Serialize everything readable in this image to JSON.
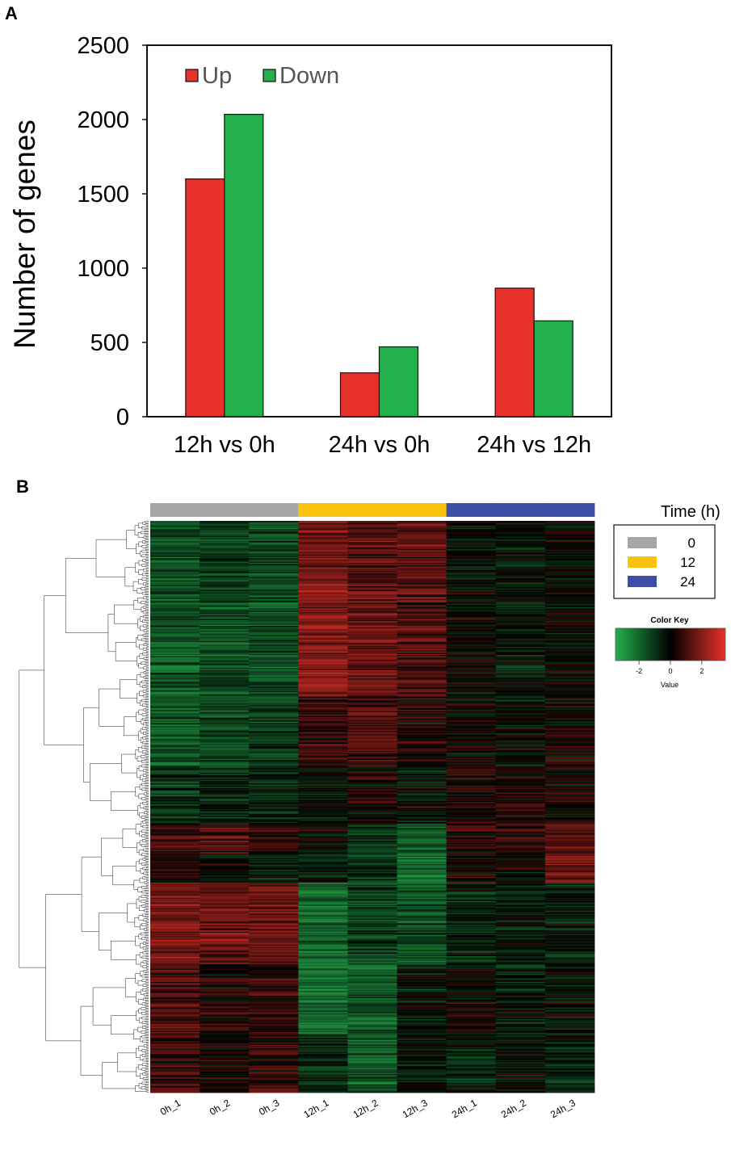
{
  "panel_labels": {
    "a": "A",
    "b": "B"
  },
  "chart_data": [
    {
      "type": "bar",
      "categories": [
        "12h vs 0h",
        "24h vs 0h",
        "24h vs 12h"
      ],
      "series": [
        {
          "name": "Up",
          "color": "#e8312a",
          "values": [
            1600,
            295,
            865
          ]
        },
        {
          "name": "Down",
          "color": "#23b04d",
          "values": [
            2035,
            470,
            645
          ]
        }
      ],
      "ylabel": "Number of genes",
      "xlabel": "",
      "ylim": [
        0,
        2500
      ],
      "yticks": [
        0,
        500,
        1000,
        1500,
        2000,
        2500
      ],
      "grid": false,
      "legend_position": "top-left"
    },
    {
      "type": "heatmap",
      "columns": [
        "0h_1",
        "0h_2",
        "0h_3",
        "12h_1",
        "12h_2",
        "12h_3",
        "24h_1",
        "24h_2",
        "24h_3"
      ],
      "column_groups": [
        {
          "label": "0",
          "color": "#a6a6a6"
        },
        {
          "label": "12",
          "color": "#fbc20e"
        },
        {
          "label": "24",
          "color": "#3f4fa8"
        }
      ],
      "column_group_of": [
        0,
        0,
        0,
        1,
        1,
        1,
        2,
        2,
        2
      ],
      "legend_title": "Time (h)",
      "color_key": {
        "title": "Color Key",
        "label": "Value",
        "ticks": [
          "-2",
          "0",
          "2"
        ],
        "range": [
          -3.5,
          3.5
        ],
        "low_color": "#23b04d",
        "mid_color": "#000000",
        "high_color": "#e8312a"
      },
      "row_blocks": [
        {
          "rows": 60,
          "means": [
            -1.2,
            -0.9,
            -1.1,
            1.4,
            0.9,
            1.0,
            -0.2,
            -0.3,
            -0.1
          ]
        },
        {
          "rows": 90,
          "means": [
            -1.3,
            -1.2,
            -1.1,
            1.6,
            1.2,
            0.9,
            -0.1,
            -0.3,
            0.0
          ]
        },
        {
          "rows": 60,
          "means": [
            -1.4,
            -1.0,
            -0.9,
            0.6,
            0.9,
            0.4,
            0.0,
            -0.2,
            0.2
          ]
        },
        {
          "rows": 50,
          "means": [
            -0.8,
            -0.7,
            -0.5,
            -0.2,
            0.1,
            -0.3,
            0.3,
            0.2,
            0.1
          ]
        },
        {
          "rows": 25,
          "means": [
            0.6,
            0.8,
            0.4,
            -0.1,
            -0.8,
            -1.5,
            0.4,
            0.6,
            0.9
          ]
        },
        {
          "rows": 25,
          "means": [
            0.2,
            0.0,
            -0.6,
            -0.4,
            -0.9,
            -1.8,
            0.3,
            0.0,
            1.2
          ]
        },
        {
          "rows": 70,
          "means": [
            1.4,
            1.2,
            1.1,
            -1.6,
            -1.0,
            -1.2,
            -0.5,
            -0.3,
            -0.4
          ]
        },
        {
          "rows": 60,
          "means": [
            0.9,
            0.4,
            0.6,
            -1.7,
            -1.3,
            -0.2,
            0.1,
            -0.4,
            -0.2
          ]
        },
        {
          "rows": 50,
          "means": [
            0.6,
            0.3,
            0.5,
            -0.6,
            -1.5,
            -0.4,
            -0.6,
            -0.2,
            -0.5
          ]
        }
      ]
    }
  ]
}
